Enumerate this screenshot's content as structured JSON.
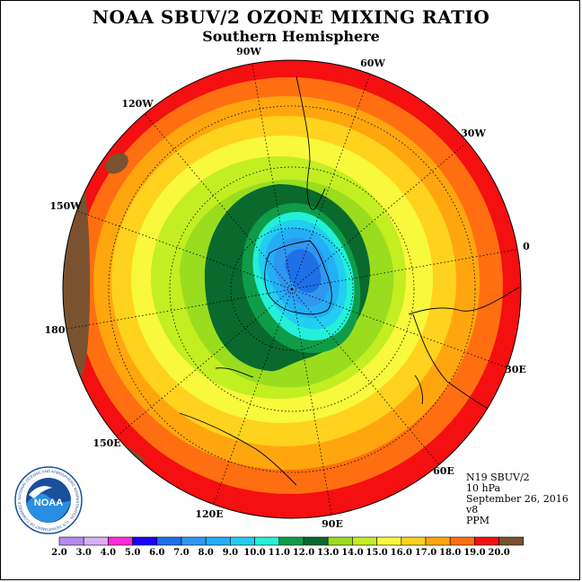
{
  "title": "NOAA SBUV/2 OZONE MIXING RATIO",
  "subtitle": "Southern Hemisphere",
  "longitude_labels": [
    "90W",
    "60W",
    "30W",
    "0",
    "30E",
    "60E",
    "90E",
    "120E",
    "150E",
    "180",
    "150W",
    "120W"
  ],
  "info": {
    "instrument": "N19 SBUV/2",
    "level": "10 hPa",
    "date": "September 26, 2016",
    "version": "v8",
    "units": "PPM"
  },
  "logo": {
    "text": "NOAA",
    "ring_text": "NATIONAL OCEANIC AND ATMOSPHERIC ADMINISTRATION · U.S. DEPARTMENT OF COMMERCE"
  },
  "colorbar": {
    "ticks": [
      "2.0",
      "3.0",
      "4.0",
      "5.0",
      "6.0",
      "7.0",
      "8.0",
      "9.0",
      "10.0",
      "11.0",
      "12.0",
      "13.0",
      "14.0",
      "15.0",
      "16.0",
      "17.0",
      "18.0",
      "19.0",
      "20.0"
    ],
    "colors": [
      "#b889f0",
      "#d9b0f2",
      "#ff2bd8",
      "#1a00ff",
      "#1e6fe8",
      "#2f97f0",
      "#23aef7",
      "#22cdf2",
      "#22f0d8",
      "#0f9c48",
      "#0a6a2e",
      "#99dd1e",
      "#c2ee22",
      "#f8f83c",
      "#ffd21e",
      "#ffa60f",
      "#ff6f11",
      "#f40f10",
      "#7a5230"
    ]
  }
}
